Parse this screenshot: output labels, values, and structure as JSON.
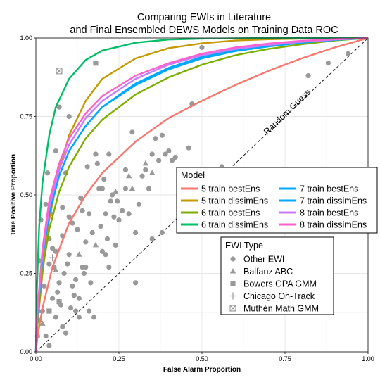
{
  "chart_data": {
    "type": "line",
    "title_line1": "Comparing EWIs in Literature",
    "title_line2": "and Final Ensembled DEWS Models on Training Data ROC",
    "xlabel": "False Alarm Proportion",
    "ylabel": "True Positive Proportion",
    "xlim": [
      0,
      1
    ],
    "ylim": [
      0,
      1
    ],
    "x_ticks": [
      "0.00",
      "0.25",
      "0.50",
      "0.75",
      "1.00"
    ],
    "y_ticks": [
      "0.00",
      "0.25",
      "0.50",
      "0.75",
      "1.00"
    ],
    "grid": true,
    "annotation": "Random Guess",
    "model_legend": {
      "title": "Model",
      "placement": "right-center",
      "entries": [
        "5 train bestEns",
        "7 train bestEns",
        "5 train dissimEns",
        "7 train dissimEns",
        "6 train bestEns",
        "8 train bestEns",
        "6 train dissimEns",
        "8 train dissimEns"
      ]
    },
    "ewi_legend": {
      "title": "EWI Type",
      "placement": "right-bottom",
      "entries": [
        "Other EWI",
        "Balfanz ABC",
        "Bowers GPA GMM",
        "Chicago On-Track",
        "Muthén Math GMM"
      ]
    },
    "series": [
      {
        "name": "5 train bestEns",
        "color": "#f8766d",
        "x": [
          0,
          0.005,
          0.02,
          0.05,
          0.1,
          0.15,
          0.2,
          0.3,
          0.4,
          0.5,
          0.6,
          0.7,
          0.8,
          0.9,
          1.0
        ],
        "y": [
          0,
          0.05,
          0.14,
          0.27,
          0.41,
          0.5,
          0.57,
          0.67,
          0.745,
          0.8,
          0.85,
          0.895,
          0.935,
          0.97,
          1.0
        ]
      },
      {
        "name": "5 train dissimEns",
        "color": "#c49a00",
        "x": [
          0,
          0.005,
          0.02,
          0.04,
          0.07,
          0.1,
          0.15,
          0.2,
          0.3,
          0.4,
          0.5,
          0.6,
          0.7,
          0.8,
          0.9,
          1.0
        ],
        "y": [
          0,
          0.09,
          0.25,
          0.42,
          0.58,
          0.69,
          0.8,
          0.87,
          0.935,
          0.968,
          0.983,
          0.992,
          0.996,
          0.998,
          0.999,
          1.0
        ]
      },
      {
        "name": "6 train bestEns",
        "color": "#7cae00",
        "x": [
          0,
          0.005,
          0.02,
          0.04,
          0.07,
          0.1,
          0.15,
          0.2,
          0.3,
          0.4,
          0.5,
          0.6,
          0.7,
          0.8,
          0.9,
          1.0
        ],
        "y": [
          0,
          0.1,
          0.26,
          0.39,
          0.51,
          0.59,
          0.68,
          0.74,
          0.82,
          0.875,
          0.915,
          0.945,
          0.965,
          0.98,
          0.992,
          1.0
        ]
      },
      {
        "name": "6 train dissimEns",
        "color": "#00be67",
        "x": [
          0,
          0.003,
          0.01,
          0.02,
          0.04,
          0.06,
          0.1,
          0.15,
          0.2,
          0.3,
          0.4,
          0.5,
          0.6,
          0.7,
          0.8,
          1.0
        ],
        "y": [
          0,
          0.2,
          0.4,
          0.54,
          0.69,
          0.78,
          0.87,
          0.93,
          0.96,
          0.985,
          0.995,
          0.998,
          0.999,
          1.0,
          1.0,
          1.0
        ]
      },
      {
        "name": "7 train bestEns",
        "color": "#00a9ff",
        "x": [
          0,
          0.005,
          0.02,
          0.04,
          0.07,
          0.1,
          0.15,
          0.2,
          0.3,
          0.4,
          0.5,
          0.6,
          0.7,
          0.8,
          0.9,
          1.0
        ],
        "y": [
          0,
          0.12,
          0.3,
          0.44,
          0.56,
          0.64,
          0.72,
          0.78,
          0.855,
          0.905,
          0.94,
          0.96,
          0.975,
          0.986,
          0.994,
          1.0
        ]
      },
      {
        "name": "7 train dissimEns",
        "color": "#00a9ff",
        "x": [
          0,
          0.005,
          0.02,
          0.04,
          0.07,
          0.1,
          0.15,
          0.2,
          0.3,
          0.4,
          0.5,
          0.6,
          0.7,
          0.8,
          0.9,
          1.0
        ],
        "y": [
          0,
          0.12,
          0.3,
          0.44,
          0.56,
          0.64,
          0.72,
          0.78,
          0.85,
          0.9,
          0.935,
          0.958,
          0.973,
          0.985,
          0.994,
          1.0
        ]
      },
      {
        "name": "8 train bestEns",
        "color": "#c77cff",
        "x": [
          0,
          0.005,
          0.02,
          0.04,
          0.07,
          0.1,
          0.15,
          0.2,
          0.3,
          0.4,
          0.5,
          0.6,
          0.7,
          0.8,
          0.9,
          1.0
        ],
        "y": [
          0,
          0.13,
          0.31,
          0.46,
          0.58,
          0.66,
          0.745,
          0.8,
          0.87,
          0.915,
          0.945,
          0.965,
          0.978,
          0.988,
          0.995,
          1.0
        ]
      },
      {
        "name": "8 train dissimEns",
        "color": "#ff61cc",
        "x": [
          0,
          0.005,
          0.02,
          0.04,
          0.07,
          0.1,
          0.15,
          0.2,
          0.3,
          0.4,
          0.5,
          0.6,
          0.7,
          0.8,
          0.9,
          1.0
        ],
        "y": [
          0,
          0.14,
          0.33,
          0.48,
          0.6,
          0.68,
          0.76,
          0.815,
          0.88,
          0.92,
          0.95,
          0.97,
          0.982,
          0.991,
          0.996,
          1.0
        ]
      }
    ],
    "ewi_points": {
      "color": "#999999",
      "other": [
        [
          0.005,
          0.05
        ],
        [
          0.01,
          0.1
        ],
        [
          0.015,
          0.42
        ],
        [
          0.02,
          0.13
        ],
        [
          0.025,
          0.21
        ],
        [
          0.03,
          0.47
        ],
        [
          0.035,
          0.57
        ],
        [
          0.04,
          0.36
        ],
        [
          0.04,
          0.02
        ],
        [
          0.045,
          0.44
        ],
        [
          0.05,
          0.17
        ],
        [
          0.05,
          0.33
        ],
        [
          0.055,
          0.27
        ],
        [
          0.06,
          0.11
        ],
        [
          0.065,
          0.19
        ],
        [
          0.07,
          0.78
        ],
        [
          0.07,
          0.22
        ],
        [
          0.075,
          0.15
        ],
        [
          0.08,
          0.08
        ],
        [
          0.08,
          0.37
        ],
        [
          0.085,
          0.25
        ],
        [
          0.09,
          0.06
        ],
        [
          0.095,
          0.28
        ],
        [
          0.1,
          0.31
        ],
        [
          0.1,
          0.43
        ],
        [
          0.105,
          0.14
        ],
        [
          0.11,
          0.21
        ],
        [
          0.115,
          0.18
        ],
        [
          0.12,
          0.23
        ],
        [
          0.125,
          0.39
        ],
        [
          0.13,
          0.17
        ],
        [
          0.135,
          0.49
        ],
        [
          0.14,
          0.27
        ],
        [
          0.145,
          0.25
        ],
        [
          0.15,
          0.35
        ],
        [
          0.155,
          0.59
        ],
        [
          0.16,
          0.13
        ],
        [
          0.165,
          0.22
        ],
        [
          0.17,
          0.38
        ],
        [
          0.175,
          0.11
        ],
        [
          0.18,
          0.63
        ],
        [
          0.185,
          0.6
        ],
        [
          0.19,
          0.52
        ],
        [
          0.195,
          0.4
        ],
        [
          0.2,
          0.32
        ],
        [
          0.205,
          0.55
        ],
        [
          0.21,
          0.44
        ],
        [
          0.215,
          0.36
        ],
        [
          0.22,
          0.27
        ],
        [
          0.225,
          0.48
        ],
        [
          0.23,
          0.5
        ],
        [
          0.235,
          0.43
        ],
        [
          0.24,
          0.34
        ],
        [
          0.245,
          0.48
        ],
        [
          0.25,
          0.42
        ],
        [
          0.26,
          0.45
        ],
        [
          0.27,
          0.52
        ],
        [
          0.28,
          0.44
        ],
        [
          0.29,
          0.7
        ],
        [
          0.3,
          0.38
        ],
        [
          0.31,
          0.47
        ],
        [
          0.32,
          0.56
        ],
        [
          0.33,
          0.58
        ],
        [
          0.34,
          0.52
        ],
        [
          0.35,
          0.63
        ],
        [
          0.36,
          0.68
        ],
        [
          0.37,
          0.61
        ],
        [
          0.38,
          0.69
        ],
        [
          0.39,
          0.63
        ],
        [
          0.4,
          0.64
        ],
        [
          0.41,
          0.61
        ],
        [
          0.42,
          0.62
        ],
        [
          0.43,
          0.55
        ],
        [
          0.44,
          0.57
        ],
        [
          0.45,
          0.5
        ],
        [
          0.46,
          0.65
        ],
        [
          0.47,
          0.79
        ],
        [
          0.5,
          0.97
        ],
        [
          0.53,
          0.46
        ],
        [
          0.56,
          0.59
        ],
        [
          0.38,
          0.38
        ],
        [
          0.13,
          0.11
        ],
        [
          0.21,
          0.31
        ],
        [
          0.1,
          0.75
        ],
        [
          0.3,
          0.22
        ],
        [
          0.27,
          0.58
        ],
        [
          0.2,
          0.52
        ],
        [
          0.06,
          0.32
        ],
        [
          0.16,
          0.44
        ],
        [
          0.08,
          0.46
        ],
        [
          0.53,
          0.53
        ],
        [
          0.62,
          0.55
        ],
        [
          0.65,
          0.58
        ],
        [
          0.82,
          0.88
        ],
        [
          0.88,
          0.92
        ],
        [
          0.94,
          0.95
        ],
        [
          0.09,
          0.57
        ],
        [
          0.15,
          0.27
        ],
        [
          0.12,
          0.13
        ],
        [
          0.24,
          0.34
        ],
        [
          0.35,
          0.36
        ],
        [
          0.43,
          0.41
        ],
        [
          0.01,
          0.29
        ],
        [
          0.03,
          0.05
        ],
        [
          0.04,
          0.28
        ],
        [
          0.06,
          0.64
        ],
        [
          0.11,
          0.41
        ],
        [
          0.14,
          0.45
        ],
        [
          0.22,
          0.63
        ]
      ],
      "balfanz": [
        [
          0.01,
          0.13
        ],
        [
          0.02,
          0.09
        ],
        [
          0.06,
          0.26
        ],
        [
          0.13,
          0.31
        ],
        [
          0.18,
          0.34
        ],
        [
          0.24,
          0.51
        ],
        [
          0.28,
          0.56
        ],
        [
          0.33,
          0.6
        ],
        [
          0.35,
          0.57
        ],
        [
          0.29,
          0.52
        ]
      ],
      "bowers": [
        [
          0.18,
          0.92
        ],
        [
          0.04,
          0.13
        ],
        [
          0.07,
          0.16
        ]
      ],
      "chicago": [
        [
          0.16,
          0.75
        ],
        [
          0.05,
          0.3
        ]
      ],
      "muthen": [
        [
          0.07,
          0.895
        ]
      ]
    }
  }
}
